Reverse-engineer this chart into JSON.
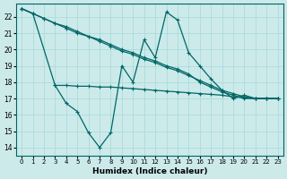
{
  "xlabel": "Humidex (Indice chaleur)",
  "background_color": "#cceaea",
  "line_color": "#006666",
  "grid_color": "#a8d8d8",
  "xlim": [
    -0.5,
    23.5
  ],
  "ylim": [
    13.5,
    22.8
  ],
  "yticks": [
    14,
    15,
    16,
    17,
    18,
    19,
    20,
    21,
    22
  ],
  "xticks": [
    0,
    1,
    2,
    3,
    4,
    5,
    6,
    7,
    8,
    9,
    10,
    11,
    12,
    13,
    14,
    15,
    16,
    17,
    18,
    19,
    20,
    21,
    22,
    23
  ],
  "xtick_labels": [
    "0",
    "1",
    "2",
    "3",
    "4",
    "5",
    "6",
    "7",
    "8",
    "9",
    "10",
    "11",
    "12",
    "13",
    "14",
    "15",
    "16",
    "17",
    "18",
    "19",
    "20",
    "21",
    "22",
    "23"
  ],
  "series1_x": [
    0,
    1,
    2,
    3,
    4,
    5,
    6,
    7,
    8,
    9,
    10,
    11,
    12,
    13,
    14,
    15,
    16,
    17,
    18,
    19,
    20,
    21,
    22,
    23
  ],
  "series1_y": [
    22.5,
    22.2,
    21.9,
    21.6,
    21.4,
    21.1,
    20.8,
    20.6,
    20.3,
    20.0,
    19.8,
    19.5,
    19.3,
    19.0,
    18.8,
    18.5,
    18.0,
    17.7,
    17.4,
    17.2,
    17.0,
    17.0,
    17.0,
    17.0
  ],
  "series2_x": [
    0,
    1,
    2,
    3,
    4,
    5,
    6,
    7,
    8,
    9,
    10,
    11,
    12,
    13,
    14,
    15,
    16,
    17,
    18,
    19,
    20,
    21,
    22,
    23
  ],
  "series2_y": [
    22.5,
    22.2,
    21.9,
    21.6,
    21.3,
    21.0,
    20.8,
    20.5,
    20.2,
    19.9,
    19.7,
    19.4,
    19.2,
    18.9,
    18.7,
    18.4,
    18.1,
    17.8,
    17.5,
    17.3,
    17.1,
    17.0,
    17.0,
    17.0
  ],
  "series3_x": [
    0,
    1,
    3,
    4,
    5,
    6,
    7,
    8,
    9,
    10,
    11,
    12,
    13,
    14,
    15,
    16,
    17,
    18,
    19,
    20,
    21,
    22,
    23
  ],
  "series3_y": [
    22.5,
    22.2,
    17.8,
    16.7,
    16.2,
    14.9,
    14.0,
    14.9,
    19.0,
    18.0,
    20.6,
    19.5,
    22.3,
    21.8,
    19.8,
    19.0,
    18.2,
    17.5,
    17.0,
    17.2,
    17.0,
    17.0,
    17.0
  ],
  "series4_x": [
    3,
    4,
    5,
    6,
    7,
    8,
    9,
    10,
    11,
    12,
    13,
    14,
    15,
    16,
    17,
    18,
    19,
    20,
    21,
    22,
    23
  ],
  "series4_y": [
    17.8,
    17.8,
    17.75,
    17.75,
    17.7,
    17.7,
    17.65,
    17.6,
    17.55,
    17.5,
    17.45,
    17.4,
    17.35,
    17.3,
    17.25,
    17.2,
    17.1,
    17.05,
    17.0,
    17.0,
    17.0
  ]
}
